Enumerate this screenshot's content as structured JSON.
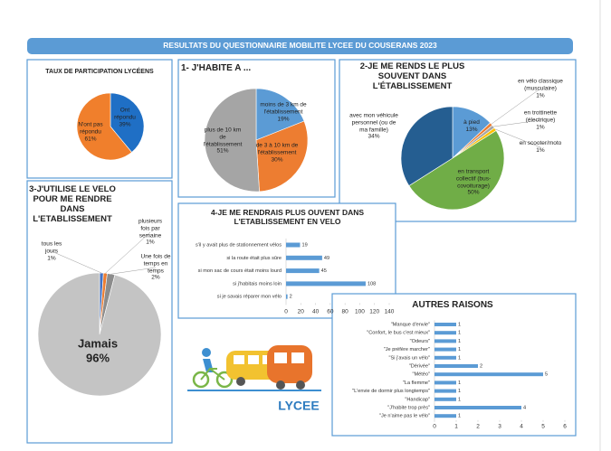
{
  "title": "RESULTATS DU QUESTIONNAIRE MOBILITE LYCEE DU COUSERANS 2023",
  "logo": {
    "text": "LYCEE"
  },
  "chart_data": [
    {
      "type": "pie",
      "title": "TAUX DE PARTICIPATION LYCÉENS",
      "categories": [
        "Ont répondu",
        "N'ont pas répondu"
      ],
      "values": [
        39,
        61
      ],
      "value_labels": [
        "39%",
        "61%"
      ],
      "colors": [
        "#1f6fc5",
        "#f07f2c"
      ]
    },
    {
      "type": "pie",
      "title": "1- J'HABITE A ...",
      "categories": [
        "moins de 3 km de l'établissement",
        "de 3 à 10 km de l'établissement",
        "plus de 10 km de l'établissement"
      ],
      "values": [
        19,
        30,
        51
      ],
      "value_labels": [
        "19%",
        "30%",
        "51%"
      ],
      "colors": [
        "#5b9bd5",
        "#ed7d31",
        "#a5a5a5"
      ]
    },
    {
      "type": "pie",
      "title": "2-JE ME RENDS LE PLUS SOUVENT DANS L'ÉTABLISSEMENT",
      "categories": [
        "à pied",
        "en vélo classique (musculaire)",
        "en trottinette (électrique)",
        "en scooter/moto",
        "en transport collectif (bus-covoiturage)",
        "avec mon véhicule personnel (ou de ma famille)"
      ],
      "values": [
        13,
        1,
        1,
        1,
        50,
        34
      ],
      "value_labels": [
        "13%",
        "1%",
        "1%",
        "1%",
        "50%",
        "34%"
      ],
      "colors": [
        "#5b9bd5",
        "#ed7d31",
        "#a5a5a5",
        "#ffc000",
        "#70ad47",
        "#255e91"
      ]
    },
    {
      "type": "pie",
      "title": "3-J'UTILISE LE VELO POUR ME RENDRE DANS L'ETABLISSEMENT",
      "categories": [
        "tous les jours",
        "plusieurs fois par semaine",
        "Une fois de temps en temps",
        "Jamais"
      ],
      "values": [
        1,
        1,
        2,
        96
      ],
      "value_labels": [
        "1%",
        "1%",
        "2%",
        "96%"
      ],
      "colors": [
        "#4472c4",
        "#ed7d31",
        "#8c8c8c",
        "#c4c4c4"
      ]
    },
    {
      "type": "hbar",
      "title": "4-JE ME RENDRAIS PLUS OUVENT DANS L'ETABLISSEMENT EN VELO",
      "categories": [
        "s'il y avait plus de stationnement vélos",
        "si la route était plus sûre",
        "si mon sac de cours était moins lourd",
        "si j'habitais moins loin",
        "si je savais réparer mon vélo"
      ],
      "values": [
        19,
        49,
        45,
        108,
        2
      ],
      "color": "#5b9bd5",
      "xlim": [
        0,
        140
      ],
      "xticks": [
        0,
        20,
        40,
        60,
        80,
        100,
        120,
        140
      ]
    },
    {
      "type": "hbar",
      "title": "AUTRES RAISONS",
      "categories": [
        "\"Manque d'envie\"",
        "\"Confort, le bus c'est mieux\"",
        "\"Odeurs\"",
        "\"Je préfère marcher\"",
        "\"Si j'avais un vélo\"",
        "\"Dérivée\"",
        "\"Météo\"",
        "\"La flemme\"",
        "\"L'envie de dormir plus longtemps\"",
        "\"Handicap\"",
        "\"J'habite trop près\"",
        "\"Je n'aime pas le vélo\""
      ],
      "values": [
        1,
        1,
        1,
        1,
        1,
        2,
        5,
        1,
        1,
        1,
        4,
        1
      ],
      "color": "#5b9bd5",
      "xlim": [
        0,
        6
      ],
      "xticks": [
        0,
        1,
        2,
        3,
        4,
        5,
        6
      ]
    }
  ]
}
